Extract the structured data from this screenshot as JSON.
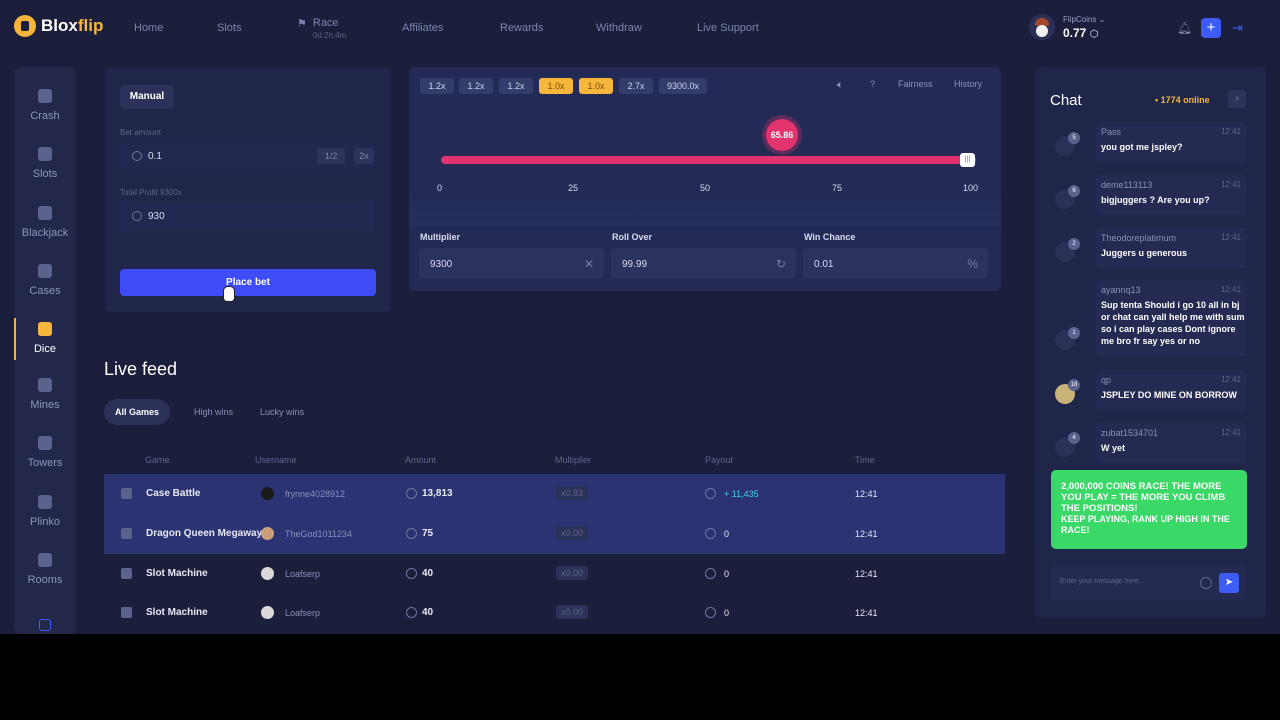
{
  "brand": {
    "name_left": "Blox",
    "name_right": "flip"
  },
  "nav": {
    "items": [
      "Home",
      "Slots",
      "Affiliates",
      "Rewards",
      "Withdraw",
      "Live Support"
    ],
    "race_label": "Race",
    "race_timer": "0d:2h:4m"
  },
  "wallet": {
    "label": "FlipCoins",
    "balance": "0.77"
  },
  "sidebar": {
    "items": [
      "Crash",
      "Slots",
      "Blackjack",
      "Cases",
      "Dice",
      "Mines",
      "Towers",
      "Plinko",
      "Rooms"
    ],
    "active": "Dice"
  },
  "bet_panel": {
    "tab": "Manual",
    "bet_amount_label": "Bet amount",
    "bet_amount_value": "0.1",
    "half_label": "1/2",
    "double_label": "2x",
    "profit_label": "Total Profit 9300x",
    "profit_value": "930",
    "place_bet_label": "Place bet"
  },
  "dice": {
    "history_chips": [
      {
        "label": "1.2x",
        "color": "#343c69"
      },
      {
        "label": "1.2x",
        "color": "#343c69"
      },
      {
        "label": "1.2x",
        "color": "#343c69"
      },
      {
        "label": "1.0x",
        "color": "#f6b53b"
      },
      {
        "label": "1.0x",
        "color": "#f6b53b"
      },
      {
        "label": "2.7x",
        "color": "#343c69"
      },
      {
        "label": "9300.0x",
        "color": "#343c69"
      }
    ],
    "help_label": "?",
    "fairness_label": "Fairness",
    "history_label": "History",
    "roll_result": "65.86",
    "ticks": [
      "0",
      "25",
      "50",
      "75",
      "100"
    ],
    "multiplier_label": "Multiplier",
    "multiplier_value": "9300",
    "roll_over_label": "Roll Over",
    "roll_over_value": "99.99",
    "win_chance_label": "Win Chance",
    "win_chance_value": "0.01"
  },
  "live_feed": {
    "title": "Live feed",
    "tabs": [
      "All Games",
      "High wins",
      "Lucky wins"
    ],
    "columns": [
      "Game",
      "Username",
      "Amount",
      "Multiplier",
      "Payout",
      "Time"
    ],
    "rows": [
      {
        "game": "Case Battle",
        "username": "frynne4028912",
        "amount": "13,813",
        "multiplier": "x0.83",
        "payout": "+ 11,435",
        "time": "12:41"
      },
      {
        "game": "Dragon Queen Megaways",
        "username": "TheGod1011234",
        "amount": "75",
        "multiplier": "x0.00",
        "payout": "0",
        "time": "12:41"
      },
      {
        "game": "Slot Machine",
        "username": "Loafserp",
        "amount": "40",
        "multiplier": "x0.00",
        "payout": "0",
        "time": "12:41"
      },
      {
        "game": "Slot Machine",
        "username": "Loafserp",
        "amount": "40",
        "multiplier": "x0.00",
        "payout": "0",
        "time": "12:41"
      }
    ]
  },
  "chat": {
    "title": "Chat",
    "online": "• 1774 online",
    "messages": [
      {
        "user": "Pass",
        "level": "5",
        "time": "12:41",
        "text": "you got me jspley?"
      },
      {
        "user": "deme113113",
        "level": "6",
        "time": "12:41",
        "text": "bigjuggers ? Are you up?"
      },
      {
        "user": "Theodoreplatimum",
        "level": "2",
        "time": "12:41",
        "text": "Juggers u generous"
      },
      {
        "user": "ayannq13",
        "level": "1",
        "time": "12:41",
        "text": "Sup tenta Should i go 10 all in bj or chat can yall help me with sum so i can play cases Dont ignore me bro fr say yes or no"
      },
      {
        "user": "qp",
        "level": "18",
        "time": "12:41",
        "text": "JSPLEY DO MINE ON BORROW"
      },
      {
        "user": "zubat1534701",
        "level": "4",
        "time": "12:41",
        "text": "W yet"
      }
    ],
    "race_banner_line1": "2,000,000 COINS RACE! THE MORE YOU PLAY = THE MORE YOU CLIMB THE POSITIONS!",
    "race_banner_line2": "KEEP PLAYING, RANK UP HIGH IN THE RACE!",
    "input_placeholder": "Enter your message here..."
  }
}
